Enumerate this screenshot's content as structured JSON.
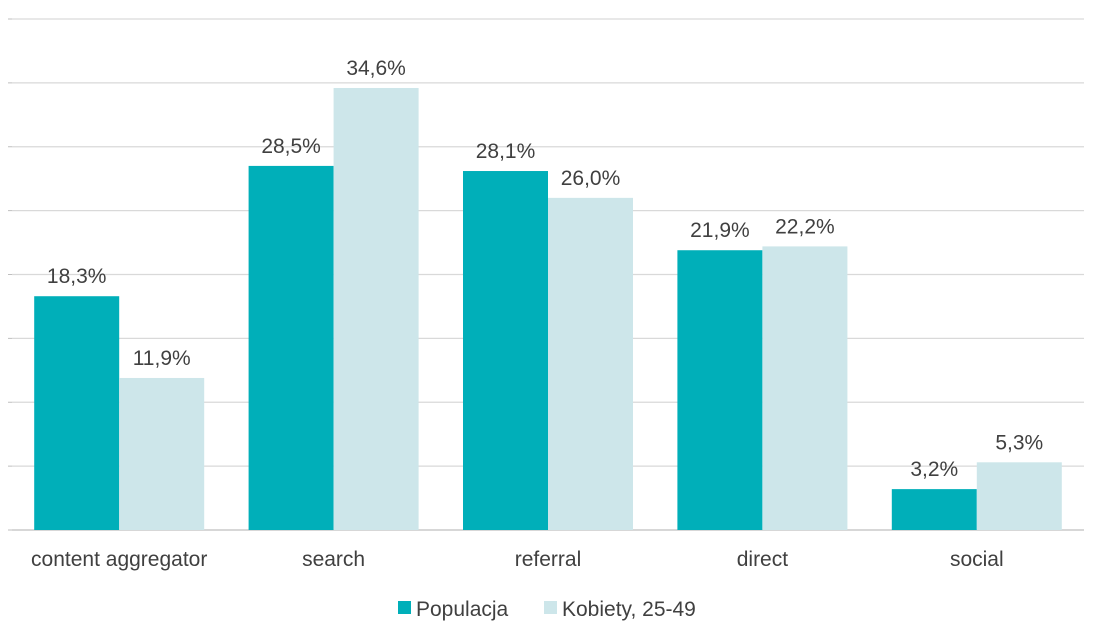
{
  "chart_data": {
    "type": "bar",
    "title": "",
    "xlabel": "",
    "ylabel": "",
    "ylim": [
      0,
      40
    ],
    "grid": true,
    "legend_position": "bottom",
    "categories": [
      "content aggregator",
      "search",
      "referral",
      "direct",
      "social"
    ],
    "series": [
      {
        "name": "Populacja",
        "color": "#00afb9",
        "values": [
          18.3,
          28.5,
          28.1,
          21.9,
          3.2
        ],
        "labels": [
          "18,3%",
          "28,5%",
          "28,1%",
          "21,9%",
          "3,2%"
        ]
      },
      {
        "name": "Kobiety, 25-49",
        "color": "#cde6ea",
        "values": [
          11.9,
          34.6,
          26.0,
          22.2,
          5.3
        ],
        "labels": [
          "11,9%",
          "34,6%",
          "26,0%",
          "22,2%",
          "5,3%"
        ]
      }
    ]
  }
}
